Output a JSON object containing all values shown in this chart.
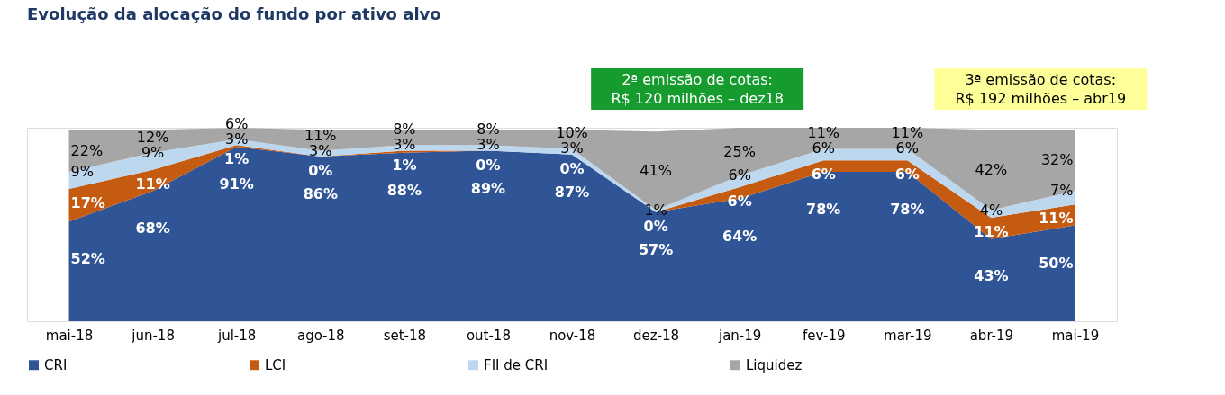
{
  "chart_data": {
    "type": "area",
    "title": "Evolução da alocação do fundo por ativo alvo",
    "categories": [
      "mai-18",
      "jun-18",
      "jul-18",
      "ago-18",
      "set-18",
      "out-18",
      "nov-18",
      "dez-18",
      "jan-19",
      "fev-19",
      "mar-19",
      "abr-19",
      "mai-19"
    ],
    "stacked": true,
    "ylim": [
      0,
      101
    ],
    "tick_labels": "x",
    "grid": false,
    "legend": "bottom",
    "series": [
      {
        "name": "CRI",
        "color": "#2f5597",
        "values": [
          52,
          68,
          91,
          86,
          88,
          89,
          87,
          57,
          64,
          78,
          78,
          43,
          50
        ],
        "value_labels": [
          "52%",
          "68%",
          "91%",
          "86%",
          "88%",
          "89%",
          "87%",
          "57%",
          "64%",
          "78%",
          "78%",
          "43%",
          "50%"
        ]
      },
      {
        "name": "LCI",
        "color": "#c55a11",
        "values": [
          17,
          11,
          1,
          0,
          1,
          0,
          0,
          0,
          6,
          6,
          6,
          11,
          11
        ],
        "value_labels": [
          "17%",
          "11%",
          "1%",
          "0%",
          "1%",
          "0%",
          "0%",
          "0%",
          "6%",
          "6%",
          "6%",
          "11%",
          "11%"
        ]
      },
      {
        "name": "FII de CRI",
        "color": "#bdd7ee",
        "values": [
          9,
          9,
          3,
          3,
          3,
          3,
          3,
          1,
          6,
          6,
          6,
          4,
          7
        ],
        "value_labels": [
          "9%",
          "9%",
          "3%",
          "3%",
          "3%",
          "3%",
          "3%",
          "1%",
          "6%",
          "6%",
          "6%",
          "4%",
          "7%"
        ]
      },
      {
        "name": "Liquidez",
        "color": "#a6a6a6",
        "values": [
          22,
          12,
          6,
          11,
          8,
          8,
          10,
          41,
          25,
          11,
          11,
          42,
          32
        ],
        "value_labels": [
          "22%",
          "12%",
          "6%",
          "11%",
          "8%",
          "8%",
          "10%",
          "41%",
          "25%",
          "11%",
          "11%",
          "42%",
          "32%"
        ]
      }
    ],
    "annotations": [
      "2ª emissão de cotas:\nR$ 120 milhões – dez18",
      "3ª emissão de cotas:\nR$ 192 milhões – abr19"
    ]
  }
}
